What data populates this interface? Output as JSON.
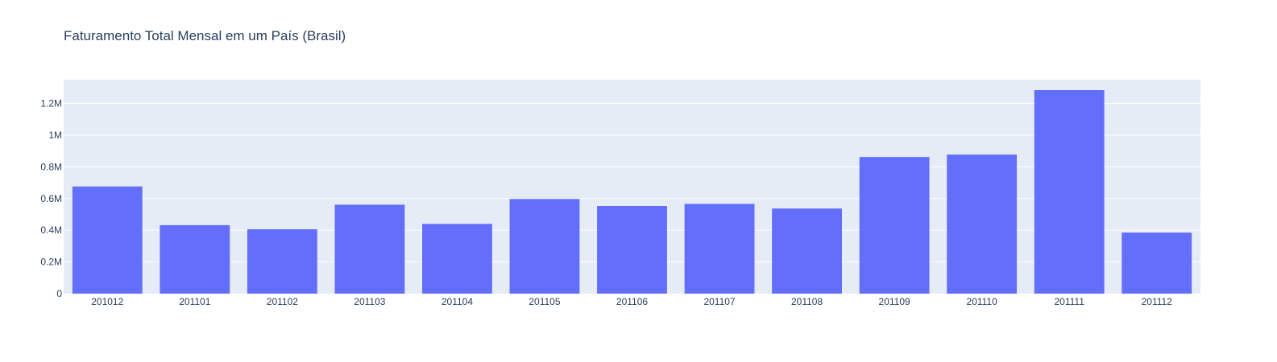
{
  "chart_data": {
    "type": "bar",
    "title": "Faturamento Total Mensal em um País (Brasil)",
    "xlabel": "",
    "ylabel": "",
    "categories": [
      "201012",
      "201101",
      "201102",
      "201103",
      "201104",
      "201105",
      "201106",
      "201107",
      "201108",
      "201109",
      "201110",
      "201111",
      "201112"
    ],
    "values": [
      676000,
      432000,
      406000,
      561000,
      440000,
      597000,
      553000,
      566000,
      537000,
      862000,
      877000,
      1284000,
      385000
    ],
    "ylim": [
      0,
      1350000
    ],
    "yticks": [
      0,
      200000,
      400000,
      600000,
      800000,
      1000000,
      1200000
    ],
    "ytick_labels": [
      "0",
      "0.2M",
      "0.4M",
      "0.6M",
      "0.8M",
      "1M",
      "1.2M"
    ],
    "grid": true,
    "colors": {
      "bar": "#636efa",
      "plot_bg": "#e5ecf6",
      "grid": "#ffffff",
      "text": "#2a3f5f"
    }
  }
}
